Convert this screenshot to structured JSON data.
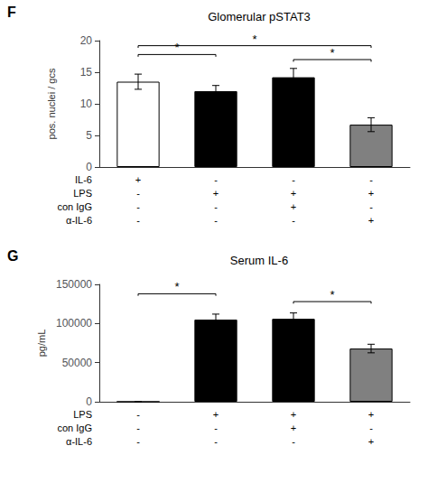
{
  "chart_data": [
    {
      "type": "bar",
      "panel_label": "F",
      "title": "Glomerular pSTAT3",
      "ylabel": "pos. nuclei / gcs",
      "categories": [
        null,
        null,
        null,
        null
      ],
      "values": [
        13.5,
        12.0,
        14.2,
        6.7
      ],
      "errors": [
        1.2,
        0.9,
        1.4,
        1.1
      ],
      "colors": [
        "white",
        "black",
        "black",
        "gray"
      ],
      "ylim": [
        0,
        20
      ],
      "yticks": [
        0,
        5,
        10,
        15,
        20
      ],
      "grid": false,
      "rows": [
        {
          "label": "IL-6",
          "values": [
            "+",
            "-",
            "-",
            "-"
          ]
        },
        {
          "label": "LPS",
          "values": [
            "-",
            "+",
            "+",
            "+"
          ]
        },
        {
          "label": "con IgG",
          "values": [
            "-",
            "-",
            "+",
            "-"
          ]
        },
        {
          "label": "α-IL-6",
          "values": [
            "-",
            "-",
            "-",
            "+"
          ]
        }
      ],
      "significance": [
        {
          "from": 0,
          "to": 1,
          "y": 17.8,
          "label": "*"
        },
        {
          "from": 0,
          "to": 3,
          "y": 19.2,
          "label": "*"
        },
        {
          "from": 2,
          "to": 3,
          "y": 17.0,
          "label": "*"
        }
      ]
    },
    {
      "type": "bar",
      "panel_label": "G",
      "title": "Serum IL-6",
      "ylabel": "pg/mL",
      "categories": [
        null,
        null,
        null,
        null
      ],
      "values": [
        0,
        105000,
        106000,
        68000
      ],
      "errors": [
        0,
        7000,
        7500,
        5500
      ],
      "colors": [
        "black",
        "black",
        "black",
        "gray"
      ],
      "ylim": [
        0,
        150000
      ],
      "yticks": [
        0,
        50000,
        100000,
        150000
      ],
      "grid": false,
      "rows": [
        {
          "label": "LPS",
          "values": [
            "-",
            "+",
            "+",
            "+"
          ]
        },
        {
          "label": "con IgG",
          "values": [
            "-",
            "-",
            "+",
            "-"
          ]
        },
        {
          "label": "α-IL-6",
          "values": [
            "-",
            "-",
            "-",
            "+"
          ]
        }
      ],
      "significance": [
        {
          "from": 0,
          "to": 1,
          "y": 138000,
          "label": "*"
        },
        {
          "from": 2,
          "to": 3,
          "y": 128000,
          "label": "*"
        }
      ]
    }
  ]
}
